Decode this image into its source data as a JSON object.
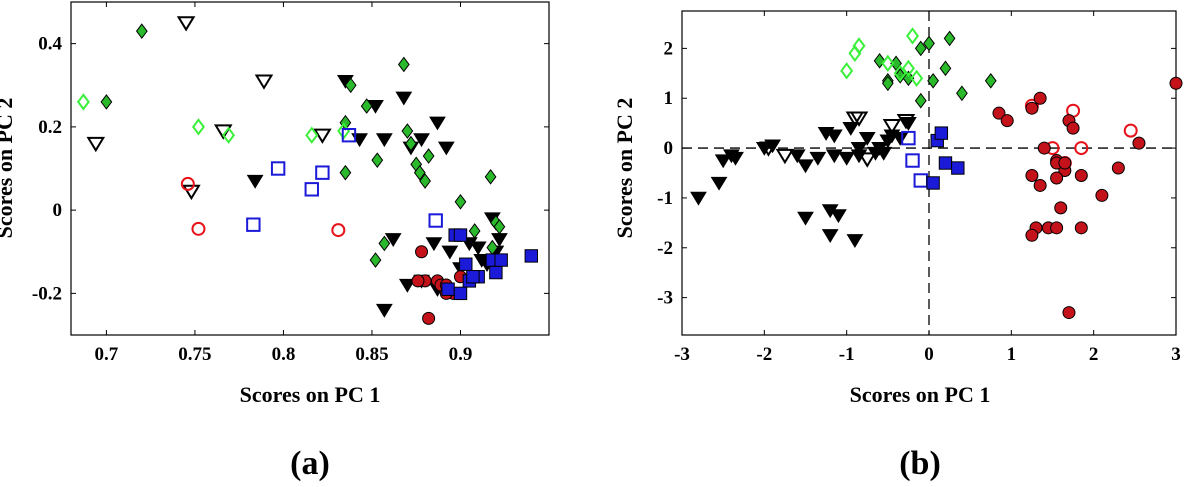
{
  "colors": {
    "black": "#000000",
    "red": "#e8131a",
    "red_fill": "#c4121a",
    "blue": "#1a1ad8",
    "green_fill": "#2ab92a",
    "green_light": "#3af03a"
  },
  "chart_data": [
    {
      "type": "scatter",
      "panel_label": "(a)",
      "xlabel": "Scores on PC 1",
      "ylabel": "Scores on PC 2",
      "xlim": [
        0.68,
        0.95
      ],
      "ylim": [
        -0.3,
        0.5
      ],
      "xticks": [
        0.7,
        0.75,
        0.8,
        0.85,
        0.9
      ],
      "xtick_labels": [
        "0.7",
        "0.75",
        "0.8",
        "0.85",
        "0.9"
      ],
      "yticks": [
        -0.2,
        0,
        0.2,
        0.4
      ],
      "ytick_labels": [
        "-0.2",
        "0",
        "0.2",
        "0.4"
      ],
      "grid": false,
      "series": [
        {
          "marker": "tri_open",
          "color": "#000000",
          "x": [
            0.694,
            0.745,
            0.789,
            0.748,
            0.766,
            0.822
          ],
          "y": [
            0.16,
            0.45,
            0.31,
            0.045,
            0.19,
            0.18
          ]
        },
        {
          "marker": "tri_filled",
          "color": "#000000",
          "x": [
            0.784,
            0.835,
            0.843,
            0.852,
            0.857,
            0.868,
            0.872,
            0.878,
            0.887,
            0.892,
            0.857,
            0.862,
            0.885,
            0.894,
            0.905,
            0.912,
            0.918,
            0.92,
            0.878,
            0.87,
            0.887,
            0.9,
            0.915,
            0.922,
            0.91
          ],
          "y": [
            0.07,
            0.31,
            0.17,
            0.25,
            0.17,
            0.27,
            0.15,
            0.17,
            0.21,
            0.15,
            -0.24,
            -0.07,
            -0.08,
            -0.1,
            -0.08,
            -0.12,
            -0.02,
            -0.1,
            -0.17,
            -0.18,
            -0.19,
            -0.14,
            -0.13,
            -0.07,
            -0.09
          ]
        },
        {
          "marker": "diamond_filled",
          "color": "#2ab92a",
          "x": [
            0.7,
            0.72,
            0.835,
            0.838,
            0.847,
            0.853,
            0.868,
            0.87,
            0.872,
            0.875,
            0.877,
            0.88,
            0.882,
            0.835,
            0.852,
            0.9,
            0.917,
            0.92,
            0.922,
            0.857,
            0.908,
            0.918
          ],
          "y": [
            0.26,
            0.43,
            0.09,
            0.3,
            0.25,
            0.12,
            0.35,
            0.19,
            0.16,
            0.11,
            0.09,
            0.07,
            0.13,
            0.21,
            -0.12,
            0.02,
            0.08,
            -0.03,
            -0.04,
            -0.08,
            -0.05,
            -0.09
          ]
        },
        {
          "marker": "diamond_open",
          "color": "#3af03a",
          "x": [
            0.687,
            0.752,
            0.769,
            0.816,
            0.834
          ],
          "y": [
            0.26,
            0.2,
            0.18,
            0.18,
            0.19
          ]
        },
        {
          "marker": "circle_open",
          "color": "#e8131a",
          "x": [
            0.746,
            0.752,
            0.831
          ],
          "y": [
            0.063,
            -0.045,
            -0.048
          ]
        },
        {
          "marker": "circle_filled",
          "color": "#c4121a",
          "x": [
            0.878,
            0.88,
            0.887,
            0.889,
            0.892,
            0.896,
            0.9,
            0.9,
            0.876,
            0.882,
            0.892
          ],
          "y": [
            -0.1,
            -0.17,
            -0.17,
            -0.18,
            -0.18,
            -0.2,
            -0.16,
            -0.2,
            -0.17,
            -0.26,
            -0.2
          ]
        },
        {
          "marker": "square_open",
          "color": "#1a1ad8",
          "x": [
            0.783,
            0.797,
            0.816,
            0.822,
            0.837,
            0.886
          ],
          "y": [
            -0.035,
            0.1,
            0.05,
            0.09,
            0.18,
            -0.025
          ]
        },
        {
          "marker": "square_filled",
          "color": "#1a1ad8",
          "x": [
            0.897,
            0.903,
            0.905,
            0.91,
            0.918,
            0.92,
            0.923,
            0.94,
            0.893,
            0.9,
            0.907,
            0.9
          ],
          "y": [
            -0.06,
            -0.13,
            -0.17,
            -0.16,
            -0.12,
            -0.15,
            -0.12,
            -0.11,
            -0.19,
            -0.2,
            -0.16,
            -0.06
          ]
        }
      ]
    },
    {
      "type": "scatter",
      "panel_label": "(b)",
      "xlabel": "Scores on PC 1",
      "ylabel": "Scores on PC 2",
      "xlim": [
        -3,
        3
      ],
      "ylim": [
        -3.75,
        2.75
      ],
      "xticks": [
        -3,
        -2,
        -1,
        0,
        1,
        2,
        3
      ],
      "xtick_labels": [
        "-3",
        "-2",
        "-1",
        "0",
        "1",
        "2",
        "3"
      ],
      "yticks": [
        -3,
        -2,
        -1,
        0,
        1,
        2
      ],
      "ytick_labels": [
        "-3",
        "-2",
        "-1",
        "0",
        "1",
        "2"
      ],
      "grid": false,
      "reference_lines": {
        "x": 0,
        "y": 0,
        "style": "dashed"
      },
      "series": [
        {
          "marker": "tri_open",
          "color": "#000000",
          "x": [
            -1.95,
            -1.75,
            -0.9,
            -0.85,
            -0.75,
            -0.45,
            -0.28
          ],
          "y": [
            0.0,
            -0.15,
            0.6,
            0.6,
            -0.22,
            0.45,
            0.55
          ]
        },
        {
          "marker": "tri_filled",
          "color": "#000000",
          "x": [
            -2.8,
            -2.55,
            -2.5,
            -2.4,
            -2.35,
            -2.0,
            -1.9,
            -1.6,
            -1.5,
            -1.35,
            -1.25,
            -1.15,
            -1.1,
            -1.0,
            -0.95,
            -0.85,
            -0.75,
            -0.65,
            -0.6,
            -0.5,
            -0.45,
            -0.35,
            -0.25,
            -1.2,
            -0.9,
            -1.5,
            -1.2,
            -1.15,
            -0.85,
            -0.55
          ],
          "y": [
            -1.0,
            -0.7,
            -0.25,
            -0.15,
            -0.2,
            0.0,
            0.05,
            -0.15,
            -0.35,
            -0.2,
            0.3,
            -0.15,
            -1.35,
            -0.2,
            0.4,
            -0.15,
            0.2,
            -0.1,
            0.0,
            0.15,
            0.25,
            0.2,
            0.5,
            -1.25,
            -1.85,
            -1.4,
            -1.75,
            0.25,
            0.0,
            -0.1
          ]
        },
        {
          "marker": "diamond_filled",
          "color": "#2ab92a",
          "x": [
            -0.6,
            -0.5,
            -0.4,
            -0.35,
            -0.25,
            -0.1,
            0.0,
            0.05,
            0.2,
            0.25,
            0.4,
            0.75,
            -0.5,
            -0.1
          ],
          "y": [
            1.75,
            1.35,
            1.7,
            1.45,
            1.4,
            2.0,
            2.1,
            1.35,
            1.6,
            2.2,
            1.1,
            1.35,
            1.3,
            0.95
          ]
        },
        {
          "marker": "diamond_open",
          "color": "#3af03a",
          "x": [
            -1.0,
            -0.9,
            -0.85,
            -0.5,
            -0.35,
            -0.25,
            -0.2,
            -0.15
          ],
          "y": [
            1.55,
            1.9,
            2.05,
            1.7,
            1.5,
            1.6,
            2.25,
            1.4
          ]
        },
        {
          "marker": "circle_open",
          "color": "#e8131a",
          "x": [
            1.25,
            1.5,
            1.65,
            1.75,
            1.85,
            2.45
          ],
          "y": [
            0.85,
            0.0,
            -0.3,
            0.75,
            0.0,
            0.35
          ]
        },
        {
          "marker": "circle_filled",
          "color": "#c4121a",
          "x": [
            0.85,
            0.95,
            1.25,
            1.35,
            1.4,
            1.55,
            1.65,
            1.7,
            1.75,
            1.25,
            1.3,
            1.55,
            1.6,
            1.85,
            2.1,
            2.3,
            2.55,
            1.25,
            1.35,
            1.45,
            1.55,
            1.7,
            1.85,
            1.55,
            3.0,
            1.65
          ],
          "y": [
            0.7,
            0.55,
            0.8,
            1.0,
            0.0,
            -0.25,
            -0.45,
            0.55,
            0.4,
            -0.55,
            -1.6,
            -0.6,
            -1.2,
            -0.55,
            -0.95,
            -0.4,
            0.1,
            -1.75,
            -0.75,
            -1.6,
            -1.6,
            -3.3,
            -1.6,
            -0.3,
            1.3,
            -0.3
          ]
        },
        {
          "marker": "square_open",
          "color": "#1a1ad8",
          "x": [
            -0.25,
            -0.2,
            -0.1
          ],
          "y": [
            0.2,
            -0.25,
            -0.65
          ]
        },
        {
          "marker": "square_filled",
          "color": "#1a1ad8",
          "x": [
            0.05,
            0.1,
            0.15,
            0.2,
            0.35
          ],
          "y": [
            -0.7,
            0.15,
            0.3,
            -0.3,
            -0.4
          ]
        }
      ]
    }
  ]
}
